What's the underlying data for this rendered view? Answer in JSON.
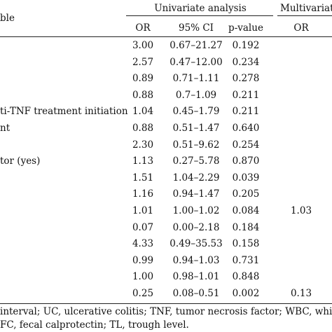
{
  "header": {
    "variable": "ble",
    "univariate": "Univariate analysis",
    "multivariate": "Multivariate a",
    "col_or": "OR",
    "col_ci": "95% CI",
    "col_p": "p-value",
    "col_mv_or": "OR"
  },
  "rows": [
    {
      "label": "",
      "or": "3.00",
      "ci": "0.67–21.27",
      "p": "0.192",
      "mv_or": ""
    },
    {
      "label": "",
      "or": "2.57",
      "ci": "0.47–12.00",
      "p": "0.234",
      "mv_or": ""
    },
    {
      "label": "",
      "or": "0.89",
      "ci": "0.71–1.11",
      "p": "0.278",
      "mv_or": ""
    },
    {
      "label": "",
      "or": "0.88",
      "ci": "0.7–1.09",
      "p": "0.211",
      "mv_or": ""
    },
    {
      "label": "ti-TNF treatment initiation",
      "or": "1.04",
      "ci": "0.45–1.79",
      "p": "0.211",
      "mv_or": ""
    },
    {
      "label": "nt",
      "or": "0.88",
      "ci": "0.51–1.47",
      "p": "0.640",
      "mv_or": ""
    },
    {
      "label": "",
      "or": "2.30",
      "ci": "0.51–9.62",
      "p": "0.254",
      "mv_or": ""
    },
    {
      "label": "tor (yes)",
      "or": "1.13",
      "ci": "0.27–5.78",
      "p": "0.870",
      "mv_or": ""
    },
    {
      "label": "",
      "or": "1.51",
      "ci": "1.04–2.29",
      "p": "0.039",
      "mv_or": ""
    },
    {
      "label": "",
      "or": "1.16",
      "ci": "0.94–1.47",
      "p": "0.205",
      "mv_or": ""
    },
    {
      "label": "",
      "or": "1.01",
      "ci": "1.00–1.02",
      "p": "0.084",
      "mv_or": "1.03"
    },
    {
      "label": "",
      "or": "0.07",
      "ci": "0.00–2.18",
      "p": "0.184",
      "mv_or": ""
    },
    {
      "label": "",
      "or": "4.33",
      "ci": "0.49–35.53",
      "p": "0.158",
      "mv_or": ""
    },
    {
      "label": "",
      "or": "0.99",
      "ci": "0.94–1.03",
      "p": "0.731",
      "mv_or": ""
    },
    {
      "label": "",
      "or": "1.00",
      "ci": "0.98–1.01",
      "p": "0.848",
      "mv_or": ""
    },
    {
      "label": "",
      "or": "0.25",
      "ci": "0.08–0.51",
      "p": "0.002",
      "mv_or": "0.13"
    }
  ],
  "footnote": {
    "line1": "interval; UC, ulcerative colitis; TNF, tumor necrosis factor; WBC, white blood cell",
    "line2": " FC, fecal calprotectin; TL, trough level."
  }
}
